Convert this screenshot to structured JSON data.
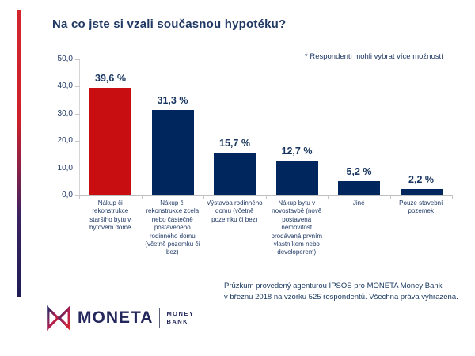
{
  "slide": {
    "title": "Na co jste si vzali současnou hypotéku?",
    "note": "* Respondenti mohli vybrat více možností",
    "footer": {
      "line1": "Průzkum provedený agenturou IPSOS pro MONETA Money Bank",
      "line2": "v březnu 2018 na vzorku 525 respondentů. Všechna práva vyhrazena."
    },
    "logo": {
      "brand": "MONETA",
      "sub_line1": "MONEY",
      "sub_line2": "BANK"
    },
    "colors": {
      "accent_red": "#c90e12",
      "navy": "#00265e",
      "text_navy": "#1f3864",
      "axis_gray": "#bfbfbf"
    }
  },
  "chart_data": {
    "type": "bar",
    "title": "Na co jste si vzali současnou hypotéku?",
    "categories": [
      "Nákup či rekonstrukce staršího bytu v bytovém domě",
      "Nákup či rekonstrukce zcela nebo částečně postaveného rodinného domu (včetně pozemku či bez)",
      "Výstavba rodinného domu (včetně pozemku či bez)",
      "Nákup bytu v novostavbě (nově postavená nemovitost prodávaná prvním vlastníkem nebo developerem)",
      "Jiné",
      "Pouze stavební pozemek"
    ],
    "values": [
      39.6,
      31.3,
      15.7,
      12.7,
      5.2,
      2.2
    ],
    "value_labels": [
      "39,6 %",
      "31,3 %",
      "15,7 %",
      "12,7 %",
      "5,2 %",
      "2,2 %"
    ],
    "bar_colors": [
      "#c90e12",
      "#00265e",
      "#00265e",
      "#00265e",
      "#00265e",
      "#00265e"
    ],
    "xlabel": "",
    "ylabel": "",
    "ylim": [
      0,
      50
    ],
    "ytick_values": [
      0,
      10,
      20,
      30,
      40,
      50
    ],
    "ytick_labels": [
      "0,0",
      "10,0",
      "20,0",
      "30,0",
      "40,0",
      "50,0"
    ],
    "grid": false,
    "legend": "none",
    "annotation": "* Respondenti mohli vybrat více možností"
  }
}
